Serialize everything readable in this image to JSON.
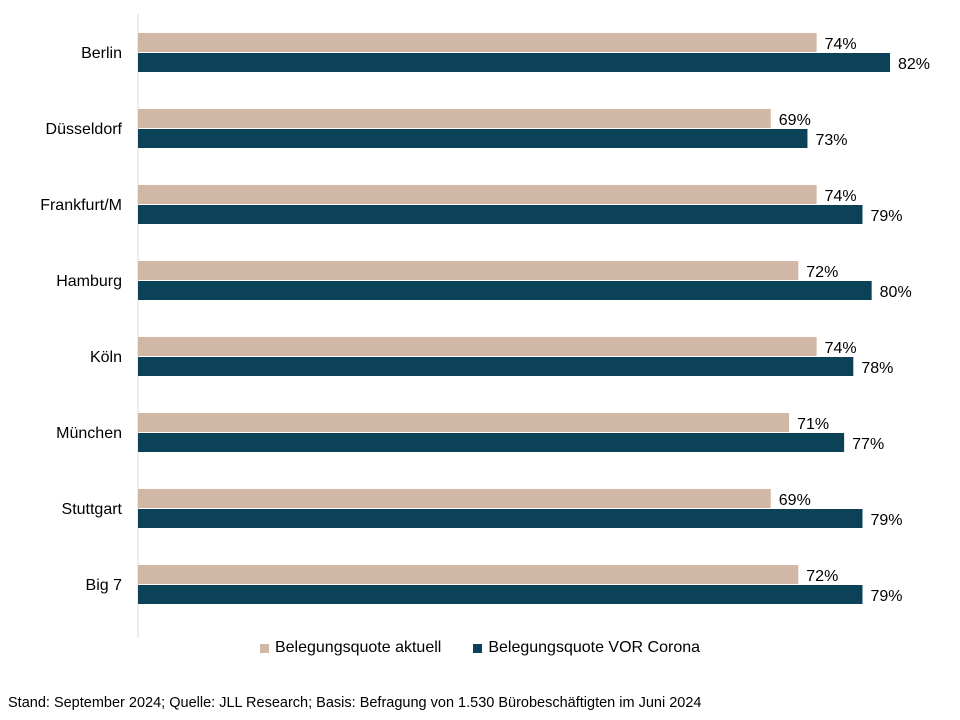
{
  "chart_data": {
    "type": "bar",
    "orientation": "horizontal",
    "categories": [
      "Berlin",
      "Düsseldorf",
      "Frankfurt/M",
      "Hamburg",
      "Köln",
      "München",
      "Stuttgart",
      "Big 7"
    ],
    "series": [
      {
        "name": "Belegungsquote aktuell",
        "color": "#d1b8a6",
        "values": [
          74,
          69,
          74,
          72,
          74,
          71,
          69,
          72
        ],
        "labels": [
          "74%",
          "69%",
          "74%",
          "72%",
          "74%",
          "71%",
          "69%",
          "72%"
        ]
      },
      {
        "name": "Belegungsquote VOR Corona",
        "color": "#0b4257",
        "values": [
          82,
          73,
          79,
          80,
          78,
          77,
          79,
          79
        ],
        "labels": [
          "82%",
          "73%",
          "79%",
          "80%",
          "78%",
          "77%",
          "79%",
          "79%"
        ]
      }
    ],
    "value_axis": {
      "min": 0,
      "max": 100,
      "unit": "%",
      "tick_labels_shown": false
    },
    "grid": false,
    "legend_position": "bottom"
  },
  "footnote": "Stand: September 2024; Quelle:  JLL Research;  Basis: Befragung von 1.530 Bürobeschäftigten im Juni 2024"
}
